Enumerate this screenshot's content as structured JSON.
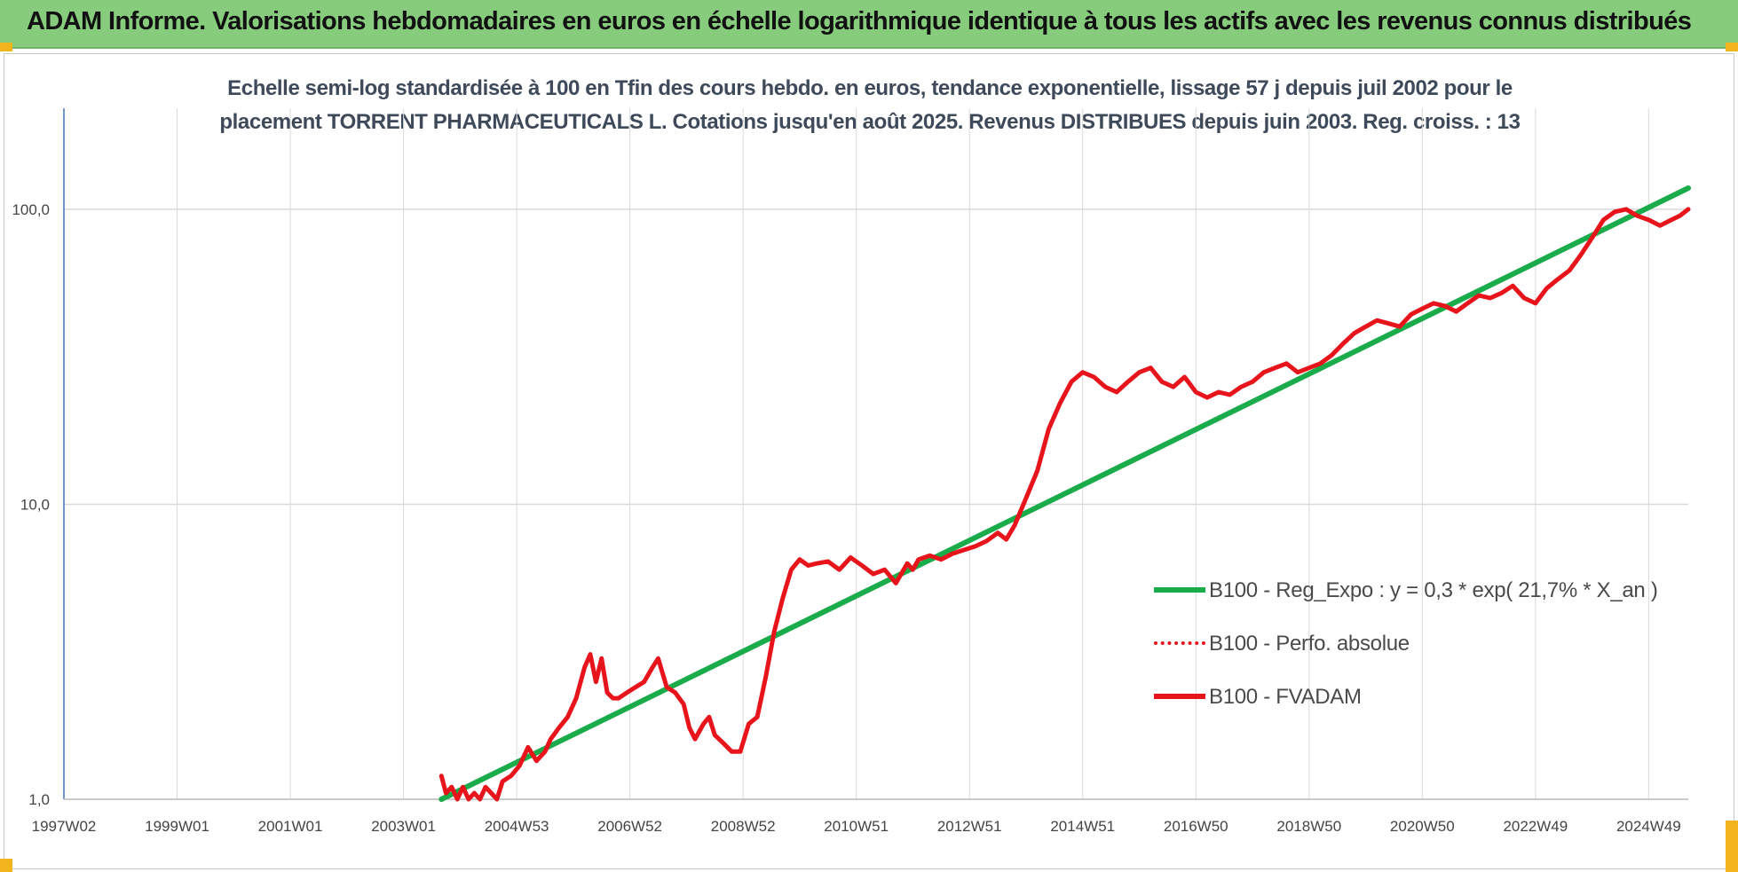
{
  "header": {
    "title": "ADAM Informe. Valorisations hebdomadaires en euros en échelle logarithmique identique à tous les actifs avec les revenus connus distribués"
  },
  "colors": {
    "banner": "#86cc7c",
    "trend": "#1aab4a",
    "fvadam": "#e8141c",
    "grid": "#d9d9d9",
    "axis": "#4472c4",
    "corner": "#f2b41c"
  },
  "chart_data": {
    "type": "line",
    "title_line1": "Echelle semi-log standardisée à 100 en Tfin des cours hebdo. en euros, tendance exponentielle, lissage 57 j depuis juil 2002 pour le",
    "title_line2": "placement TORRENT PHARMACEUTICALS L. Cotations jusqu'en août 2025. Revenus DISTRIBUES depuis juin 2003. Reg. croiss. : 13",
    "y_scale": "log",
    "ylim": [
      1,
      220
    ],
    "xlim": [
      1997.0,
      2025.7
    ],
    "y_ticks": [
      {
        "value": 1,
        "label": "1,0"
      },
      {
        "value": 10,
        "label": "10,0"
      },
      {
        "value": 100,
        "label": "100,0"
      }
    ],
    "x_ticks": [
      {
        "value": 1997.0,
        "label": "1997W02"
      },
      {
        "value": 1999.0,
        "label": "1999W01"
      },
      {
        "value": 2001.0,
        "label": "2001W01"
      },
      {
        "value": 2003.0,
        "label": "2003W01"
      },
      {
        "value": 2005.0,
        "label": "2004W53"
      },
      {
        "value": 2007.0,
        "label": "2006W52"
      },
      {
        "value": 2009.0,
        "label": "2008W52"
      },
      {
        "value": 2011.0,
        "label": "2010W51"
      },
      {
        "value": 2013.0,
        "label": "2012W51"
      },
      {
        "value": 2015.0,
        "label": "2014W51"
      },
      {
        "value": 2017.0,
        "label": "2016W50"
      },
      {
        "value": 2019.0,
        "label": "2018W50"
      },
      {
        "value": 2021.0,
        "label": "2020W50"
      },
      {
        "value": 2023.0,
        "label": "2022W49"
      },
      {
        "value": 2025.0,
        "label": "2024W49"
      }
    ],
    "grid": true,
    "legend_position": "right",
    "series": [
      {
        "name": "B100 - Reg_Expo : y = 0,3 * exp( 21,7% * X_an )",
        "style": "solid",
        "color": "#1aab4a",
        "x": [
          2003.67,
          2025.7
        ],
        "y": [
          1.0,
          118
        ]
      },
      {
        "name": "B100 - Perfo. absolue",
        "style": "dotted",
        "color": "#e8141c",
        "x": [],
        "y": []
      },
      {
        "name": "B100 - FVADAM",
        "style": "solid",
        "color": "#e8141c",
        "x": [
          2003.67,
          2003.75,
          2003.85,
          2003.95,
          2004.05,
          2004.15,
          2004.25,
          2004.35,
          2004.45,
          2004.55,
          2004.65,
          2004.75,
          2004.9,
          2005.05,
          2005.2,
          2005.35,
          2005.5,
          2005.6,
          2005.75,
          2005.9,
          2006.05,
          2006.2,
          2006.3,
          2006.4,
          2006.5,
          2006.6,
          2006.7,
          2006.8,
          2006.95,
          2007.1,
          2007.25,
          2007.4,
          2007.5,
          2007.65,
          2007.8,
          2007.95,
          2008.05,
          2008.15,
          2008.3,
          2008.4,
          2008.5,
          2008.65,
          2008.8,
          2008.95,
          2009.1,
          2009.25,
          2009.4,
          2009.55,
          2009.7,
          2009.85,
          2010.0,
          2010.15,
          2010.3,
          2010.5,
          2010.7,
          2010.9,
          2011.1,
          2011.3,
          2011.5,
          2011.7,
          2011.9,
          2012.0,
          2012.1,
          2012.3,
          2012.5,
          2012.7,
          2012.9,
          2013.1,
          2013.3,
          2013.5,
          2013.65,
          2013.8,
          2014.0,
          2014.2,
          2014.4,
          2014.6,
          2014.8,
          2015.0,
          2015.2,
          2015.4,
          2015.6,
          2015.8,
          2016.0,
          2016.2,
          2016.4,
          2016.6,
          2016.8,
          2017.0,
          2017.2,
          2017.4,
          2017.6,
          2017.8,
          2018.0,
          2018.2,
          2018.4,
          2018.6,
          2018.8,
          2019.0,
          2019.2,
          2019.4,
          2019.6,
          2019.8,
          2020.0,
          2020.2,
          2020.4,
          2020.6,
          2020.8,
          2021.0,
          2021.2,
          2021.4,
          2021.6,
          2021.8,
          2022.0,
          2022.2,
          2022.4,
          2022.6,
          2022.8,
          2023.0,
          2023.2,
          2023.4,
          2023.6,
          2023.8,
          2024.0,
          2024.2,
          2024.4,
          2024.6,
          2024.8,
          2025.0,
          2025.2,
          2025.4,
          2025.55,
          2025.7
        ],
        "y": [
          1.2,
          1.05,
          1.1,
          1.0,
          1.1,
          1.0,
          1.05,
          1.0,
          1.1,
          1.05,
          1.0,
          1.15,
          1.2,
          1.3,
          1.5,
          1.35,
          1.45,
          1.6,
          1.75,
          1.9,
          2.2,
          2.8,
          3.1,
          2.5,
          3.0,
          2.3,
          2.2,
          2.2,
          2.3,
          2.4,
          2.5,
          2.8,
          3.0,
          2.4,
          2.3,
          2.1,
          1.75,
          1.6,
          1.8,
          1.9,
          1.65,
          1.55,
          1.45,
          1.45,
          1.8,
          1.9,
          2.6,
          3.7,
          4.8,
          6.0,
          6.5,
          6.2,
          6.3,
          6.4,
          6.0,
          6.6,
          6.2,
          5.8,
          6.0,
          5.4,
          6.3,
          6.0,
          6.5,
          6.7,
          6.5,
          6.8,
          7.0,
          7.2,
          7.5,
          8.0,
          7.6,
          8.5,
          10.5,
          13.0,
          18.0,
          22.0,
          26.0,
          28.0,
          27.0,
          25.0,
          24.0,
          26.0,
          28.0,
          29.0,
          26.0,
          25.0,
          27.0,
          24.0,
          23.0,
          24.0,
          23.5,
          25.0,
          26.0,
          28.0,
          29.0,
          30.0,
          28.0,
          29.0,
          30.0,
          32.0,
          35.0,
          38.0,
          40.0,
          42.0,
          41.0,
          40.0,
          44.0,
          46.0,
          48.0,
          47.0,
          45.0,
          48.0,
          51.0,
          50.0,
          52.0,
          55.0,
          50.0,
          48.0,
          54.0,
          58.0,
          62.0,
          70.0,
          80.0,
          92.0,
          98.0,
          100.0,
          95.0,
          92.0,
          88.0,
          92.0,
          95.0,
          100.0
        ]
      }
    ]
  }
}
